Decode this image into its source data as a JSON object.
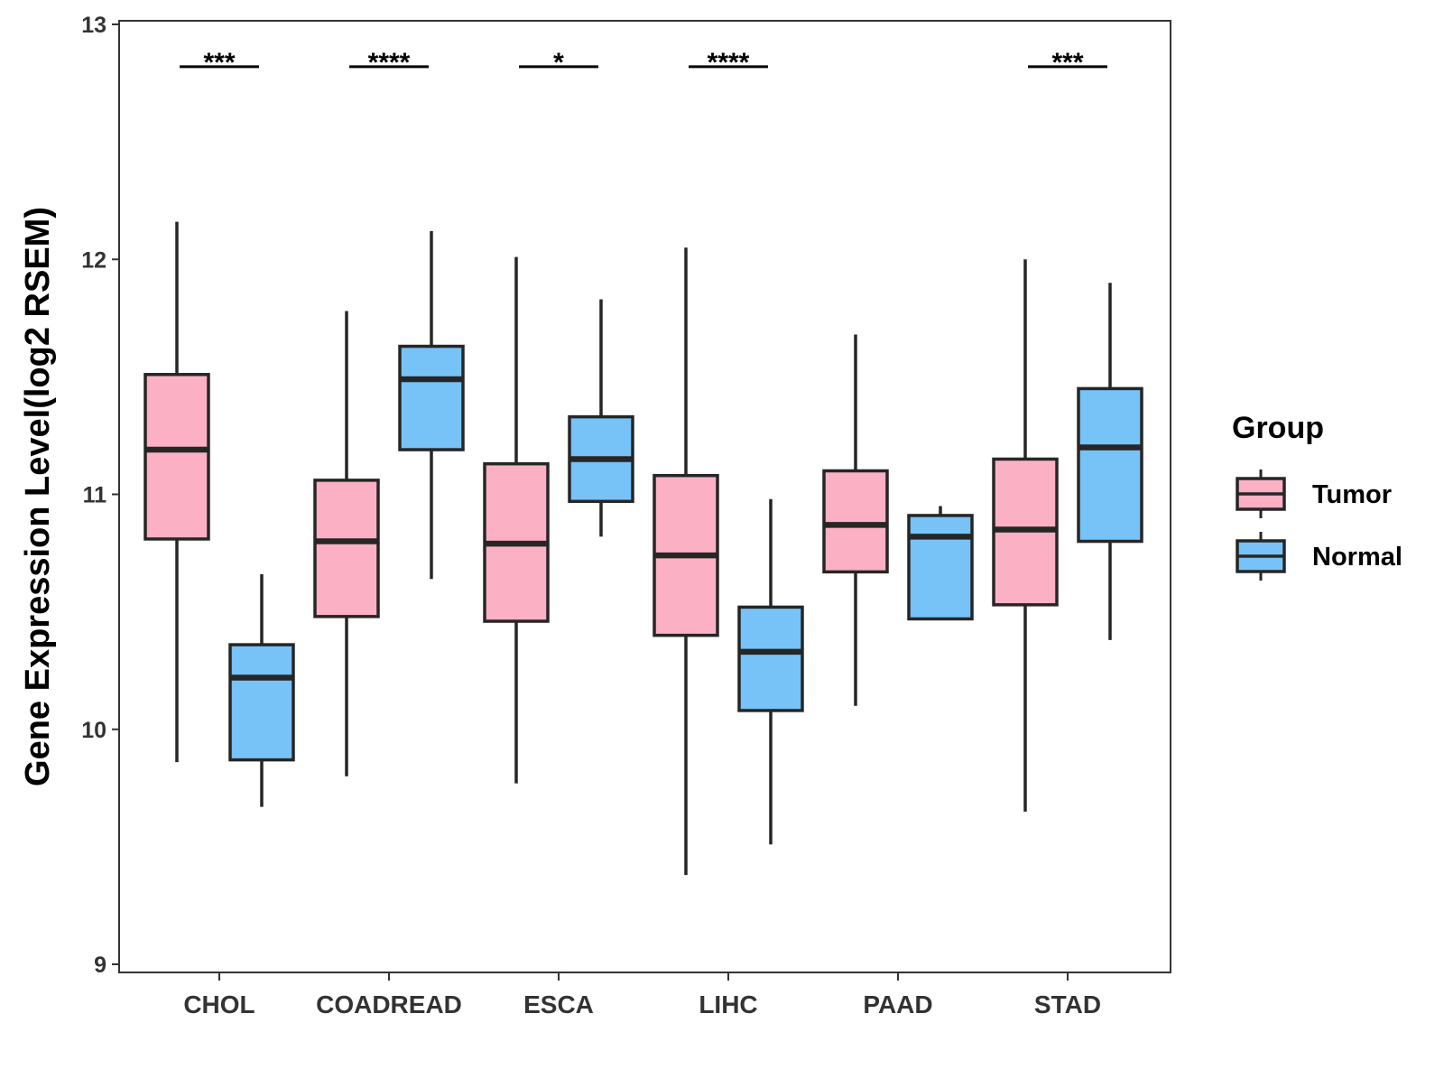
{
  "chart_data": {
    "type": "boxplot",
    "title": "",
    "xlabel": "",
    "ylabel": "Gene Expression Level(log2 RSEM)",
    "ylim": [
      9,
      13
    ],
    "yticks": [
      9,
      10,
      11,
      12,
      13
    ],
    "grid": false,
    "categories": [
      "CHOL",
      "COADREAD",
      "ESCA",
      "LIHC",
      "PAAD",
      "STAD"
    ],
    "legend": {
      "title": "Group",
      "position": "right",
      "entries": [
        "Tumor",
        "Normal"
      ]
    },
    "series": [
      {
        "name": "Tumor",
        "color": "#FBB0C3",
        "boxes": [
          {
            "min": 9.86,
            "q1": 10.81,
            "median": 11.19,
            "q3": 11.51,
            "max": 12.16
          },
          {
            "min": 9.8,
            "q1": 10.48,
            "median": 10.8,
            "q3": 11.06,
            "max": 11.78
          },
          {
            "min": 9.77,
            "q1": 10.46,
            "median": 10.79,
            "q3": 11.13,
            "max": 12.01
          },
          {
            "min": 9.38,
            "q1": 10.4,
            "median": 10.74,
            "q3": 11.08,
            "max": 12.05
          },
          {
            "min": 10.1,
            "q1": 10.67,
            "median": 10.87,
            "q3": 11.1,
            "max": 11.68
          },
          {
            "min": 9.65,
            "q1": 10.53,
            "median": 10.85,
            "q3": 11.15,
            "max": 12.0
          }
        ]
      },
      {
        "name": "Normal",
        "color": "#77C3F8",
        "boxes": [
          {
            "min": 9.67,
            "q1": 9.87,
            "median": 10.22,
            "q3": 10.36,
            "max": 10.66
          },
          {
            "min": 10.64,
            "q1": 11.19,
            "median": 11.49,
            "q3": 11.63,
            "max": 12.12
          },
          {
            "min": 10.82,
            "q1": 10.97,
            "median": 11.15,
            "q3": 11.33,
            "max": 11.83
          },
          {
            "min": 9.51,
            "q1": 10.08,
            "median": 10.33,
            "q3": 10.52,
            "max": 10.98
          },
          {
            "min": 10.47,
            "q1": 10.47,
            "median": 10.82,
            "q3": 10.91,
            "max": 10.95
          },
          {
            "min": 10.38,
            "q1": 10.8,
            "median": 11.2,
            "q3": 11.45,
            "max": 11.9
          }
        ]
      }
    ],
    "significance": [
      {
        "category": "CHOL",
        "label": "***"
      },
      {
        "category": "COADREAD",
        "label": "****"
      },
      {
        "category": "ESCA",
        "label": "*"
      },
      {
        "category": "LIHC",
        "label": "****"
      },
      {
        "category": "STAD",
        "label": "***"
      }
    ],
    "significance_level": 12.82
  }
}
